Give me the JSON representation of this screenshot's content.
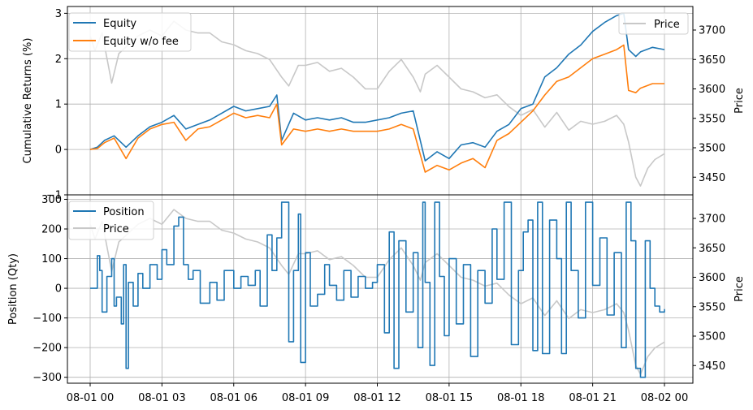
{
  "chart_data": [
    {
      "type": "line",
      "panel": "top",
      "ylabel": "Cumulative Returns (%)",
      "y2label": "Price",
      "ylim": [
        -1,
        3.15
      ],
      "y2lim": [
        3420,
        3740
      ],
      "yticks": [
        "−1",
        "0",
        "1",
        "2",
        "3"
      ],
      "yticks_values": [
        -1,
        0,
        1,
        2,
        3
      ],
      "y2ticks": [
        "3450",
        "3500",
        "3550",
        "3600",
        "3650",
        "3700"
      ],
      "y2ticks_values": [
        3450,
        3500,
        3550,
        3600,
        3650,
        3700
      ],
      "grid": true,
      "legend_left": "upper-left",
      "legend_right": "upper-right",
      "series": [
        {
          "name": "Equity",
          "axis": "left",
          "color": "#1f77b4",
          "x": [
            0,
            0.3,
            0.6,
            1.0,
            1.5,
            2.0,
            2.5,
            3.0,
            3.5,
            4.0,
            4.5,
            5.0,
            5.5,
            6.0,
            6.5,
            7.0,
            7.5,
            7.8,
            8.0,
            8.5,
            9.0,
            9.5,
            10.0,
            10.5,
            11.0,
            11.5,
            12.0,
            12.5,
            13.0,
            13.5,
            14.0,
            14.5,
            15.0,
            15.5,
            16.0,
            16.5,
            17.0,
            17.5,
            18.0,
            18.5,
            19.0,
            19.5,
            20.0,
            20.5,
            21.0,
            21.5,
            22.0,
            22.3,
            22.5,
            22.8,
            23.0,
            23.5,
            24.0
          ],
          "y": [
            0,
            0.05,
            0.2,
            0.3,
            0.05,
            0.3,
            0.5,
            0.6,
            0.75,
            0.45,
            0.55,
            0.65,
            0.8,
            0.95,
            0.85,
            0.9,
            0.95,
            1.2,
            0.2,
            0.8,
            0.65,
            0.7,
            0.65,
            0.7,
            0.6,
            0.6,
            0.65,
            0.7,
            0.8,
            0.85,
            -0.25,
            -0.05,
            -0.2,
            0.1,
            0.15,
            0.05,
            0.4,
            0.55,
            0.9,
            1.0,
            1.6,
            1.8,
            2.1,
            2.3,
            2.6,
            2.8,
            2.95,
            3.0,
            2.2,
            2.05,
            2.15,
            2.25,
            2.2
          ]
        },
        {
          "name": "Equity w/o fee",
          "axis": "left",
          "color": "#ff7f0e",
          "x": [
            0,
            0.3,
            0.6,
            1.0,
            1.5,
            2.0,
            2.5,
            3.0,
            3.5,
            4.0,
            4.5,
            5.0,
            5.5,
            6.0,
            6.5,
            7.0,
            7.5,
            7.8,
            8.0,
            8.5,
            9.0,
            9.5,
            10.0,
            10.5,
            11.0,
            11.5,
            12.0,
            12.5,
            13.0,
            13.5,
            14.0,
            14.5,
            15.0,
            15.5,
            16.0,
            16.5,
            17.0,
            17.5,
            18.0,
            18.5,
            19.0,
            19.5,
            20.0,
            20.5,
            21.0,
            21.5,
            22.0,
            22.3,
            22.5,
            22.8,
            23.0,
            23.5,
            24.0
          ],
          "y": [
            0,
            0.02,
            0.15,
            0.25,
            -0.2,
            0.25,
            0.45,
            0.55,
            0.6,
            0.2,
            0.45,
            0.5,
            0.65,
            0.8,
            0.7,
            0.75,
            0.7,
            1.0,
            0.1,
            0.45,
            0.4,
            0.45,
            0.4,
            0.45,
            0.4,
            0.4,
            0.4,
            0.45,
            0.55,
            0.45,
            -0.5,
            -0.35,
            -0.45,
            -0.3,
            -0.2,
            -0.4,
            0.2,
            0.35,
            0.6,
            0.85,
            1.2,
            1.5,
            1.6,
            1.8,
            2.0,
            2.1,
            2.2,
            2.3,
            1.3,
            1.25,
            1.35,
            1.45,
            1.45
          ]
        },
        {
          "name": "Price",
          "axis": "right",
          "color": "#c8c8c8",
          "x": [
            0,
            0.2,
            0.5,
            0.9,
            1.2,
            1.6,
            2.0,
            2.5,
            3.0,
            3.5,
            4.0,
            4.5,
            5.0,
            5.5,
            6.0,
            6.5,
            7.0,
            7.5,
            8.0,
            8.3,
            8.7,
            9.0,
            9.5,
            10.0,
            10.5,
            11.0,
            11.5,
            12.0,
            12.5,
            13.0,
            13.5,
            13.8,
            14.0,
            14.5,
            15.0,
            15.5,
            16.0,
            16.5,
            17.0,
            17.5,
            18.0,
            18.5,
            19.0,
            19.5,
            20.0,
            20.5,
            21.0,
            21.5,
            22.0,
            22.3,
            22.5,
            22.8,
            23.0,
            23.3,
            23.6,
            24.0
          ],
          "y": [
            3690,
            3665,
            3695,
            3610,
            3660,
            3675,
            3690,
            3700,
            3690,
            3715,
            3700,
            3695,
            3695,
            3680,
            3675,
            3665,
            3660,
            3650,
            3620,
            3605,
            3640,
            3640,
            3645,
            3630,
            3635,
            3620,
            3600,
            3600,
            3630,
            3650,
            3620,
            3595,
            3625,
            3640,
            3620,
            3600,
            3595,
            3585,
            3590,
            3570,
            3555,
            3565,
            3535,
            3560,
            3530,
            3545,
            3540,
            3545,
            3555,
            3540,
            3510,
            3450,
            3435,
            3465,
            3480,
            3490
          ]
        }
      ]
    },
    {
      "type": "line",
      "panel": "bottom",
      "ylabel": "Position (Qty)",
      "y2label": "Price",
      "ylim": [
        -320,
        315
      ],
      "y2lim": [
        3420,
        3740
      ],
      "yticks": [
        "−300",
        "−200",
        "−100",
        "0",
        "100",
        "200",
        "300"
      ],
      "yticks_values": [
        -300,
        -200,
        -100,
        0,
        100,
        200,
        300
      ],
      "y2ticks": [
        "3450",
        "3500",
        "3550",
        "3600",
        "3650",
        "3700"
      ],
      "y2ticks_values": [
        3450,
        3500,
        3550,
        3600,
        3650,
        3700
      ],
      "grid": true,
      "legend": "upper-left",
      "x_ticklabels": [
        "08-01 00",
        "08-01 03",
        "08-01 06",
        "08-01 09",
        "08-01 12",
        "08-01 15",
        "08-01 18",
        "08-01 21",
        "08-02 00"
      ],
      "x_tick_hours": [
        0,
        3,
        6,
        9,
        12,
        15,
        18,
        21,
        24
      ],
      "series": [
        {
          "name": "Position",
          "axis": "left",
          "color": "#1f77b4",
          "x": [
            0,
            0.2,
            0.3,
            0.4,
            0.5,
            0.7,
            0.9,
            1.0,
            1.1,
            1.3,
            1.4,
            1.5,
            1.6,
            1.8,
            2.0,
            2.2,
            2.5,
            2.8,
            3.0,
            3.2,
            3.5,
            3.7,
            3.9,
            4.1,
            4.3,
            4.6,
            5.0,
            5.3,
            5.6,
            6.0,
            6.3,
            6.6,
            6.9,
            7.1,
            7.4,
            7.6,
            7.8,
            8.0,
            8.3,
            8.5,
            8.7,
            8.8,
            9.0,
            9.2,
            9.5,
            9.8,
            10.0,
            10.3,
            10.6,
            10.9,
            11.2,
            11.5,
            11.8,
            12.0,
            12.3,
            12.5,
            12.7,
            12.9,
            13.2,
            13.5,
            13.7,
            13.9,
            14.0,
            14.2,
            14.4,
            14.6,
            14.8,
            15.0,
            15.3,
            15.6,
            15.9,
            16.2,
            16.5,
            16.8,
            17.0,
            17.3,
            17.6,
            17.9,
            18.1,
            18.3,
            18.5,
            18.7,
            18.9,
            19.2,
            19.5,
            19.7,
            19.9,
            20.1,
            20.4,
            20.7,
            21.0,
            21.3,
            21.6,
            21.9,
            22.2,
            22.4,
            22.6,
            22.8,
            23.0,
            23.2,
            23.4,
            23.6,
            23.8,
            24.0
          ],
          "y": [
            0,
            0,
            110,
            60,
            -80,
            40,
            100,
            -60,
            -30,
            -120,
            80,
            -270,
            20,
            -60,
            50,
            0,
            80,
            30,
            130,
            80,
            210,
            240,
            80,
            30,
            60,
            -50,
            20,
            -40,
            60,
            0,
            40,
            10,
            60,
            -60,
            180,
            60,
            170,
            290,
            -180,
            60,
            250,
            -250,
            120,
            -60,
            -20,
            80,
            10,
            -40,
            60,
            -30,
            40,
            0,
            20,
            80,
            -150,
            190,
            -270,
            160,
            -80,
            120,
            -200,
            290,
            20,
            -260,
            290,
            40,
            -160,
            100,
            -120,
            80,
            -230,
            60,
            -50,
            200,
            30,
            290,
            -190,
            60,
            190,
            230,
            -210,
            290,
            -220,
            230,
            100,
            -220,
            290,
            60,
            -100,
            290,
            10,
            170,
            -90,
            120,
            -200,
            290,
            160,
            -270,
            -300,
            160,
            0,
            -60,
            -80,
            -70
          ]
        },
        {
          "name": "Price",
          "axis": "right",
          "color": "#c8c8c8",
          "x": [
            0,
            0.2,
            0.5,
            0.9,
            1.2,
            1.6,
            2.0,
            2.5,
            3.0,
            3.5,
            4.0,
            4.5,
            5.0,
            5.5,
            6.0,
            6.5,
            7.0,
            7.5,
            8.0,
            8.3,
            8.7,
            9.0,
            9.5,
            10.0,
            10.5,
            11.0,
            11.5,
            12.0,
            12.5,
            13.0,
            13.5,
            13.8,
            14.0,
            14.5,
            15.0,
            15.5,
            16.0,
            16.5,
            17.0,
            17.5,
            18.0,
            18.5,
            19.0,
            19.5,
            20.0,
            20.5,
            21.0,
            21.5,
            22.0,
            22.3,
            22.5,
            22.8,
            23.0,
            23.3,
            23.6,
            24.0
          ],
          "y": [
            3690,
            3665,
            3695,
            3610,
            3660,
            3675,
            3690,
            3700,
            3690,
            3715,
            3700,
            3695,
            3695,
            3680,
            3675,
            3665,
            3660,
            3650,
            3620,
            3605,
            3640,
            3640,
            3645,
            3630,
            3635,
            3620,
            3600,
            3600,
            3630,
            3650,
            3620,
            3595,
            3625,
            3640,
            3620,
            3600,
            3595,
            3585,
            3590,
            3570,
            3555,
            3565,
            3535,
            3560,
            3530,
            3545,
            3540,
            3545,
            3555,
            3540,
            3510,
            3450,
            3435,
            3465,
            3480,
            3490
          ]
        }
      ]
    }
  ]
}
